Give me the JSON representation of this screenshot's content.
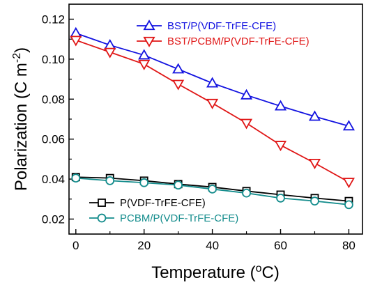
{
  "chart_data": {
    "type": "line",
    "xlabel": "Temperature (",
    "xlabel_sup": "o",
    "xlabel_tail": "C)",
    "ylabel": "Polarization (C m",
    "ylabel_sup": "-2",
    "ylabel_tail": ")",
    "xlim": [
      -2,
      84
    ],
    "ylim": [
      0.0125,
      0.1275
    ],
    "x_ticks": [
      0,
      20,
      40,
      60,
      80
    ],
    "x_tick_labels": [
      "0",
      "20",
      "40",
      "60",
      "80"
    ],
    "y_ticks": [
      0.02,
      0.04,
      0.06,
      0.08,
      0.1,
      0.12
    ],
    "y_tick_labels": [
      "0.02",
      "0.04",
      "0.06",
      "0.08",
      "0.10",
      "0.12"
    ],
    "grid": false,
    "series": [
      {
        "name": "BST/P(VDF-TrFE-CFE)",
        "color": "#1212e0",
        "marker": "triangle-up",
        "x": [
          0,
          10,
          20,
          30,
          40,
          50,
          60,
          70,
          80
        ],
        "y": [
          0.113,
          0.107,
          0.102,
          0.095,
          0.088,
          0.082,
          0.0765,
          0.0713,
          0.0665
        ]
      },
      {
        "name": "BST/PCBM/P(VDF-TrFE-CFE)",
        "color": "#e01616",
        "marker": "triangle-down",
        "x": [
          0,
          10,
          20,
          30,
          40,
          50,
          60,
          70,
          80
        ],
        "y": [
          0.1095,
          0.1035,
          0.0975,
          0.0875,
          0.078,
          0.068,
          0.057,
          0.048,
          0.0385
        ]
      },
      {
        "name": "P(VDF-TrFE-CFE)",
        "color": "#000000",
        "marker": "square",
        "x": [
          0,
          10,
          20,
          30,
          40,
          50,
          60,
          70,
          80
        ],
        "y": [
          0.041,
          0.0405,
          0.0392,
          0.0375,
          0.036,
          0.034,
          0.0322,
          0.0305,
          0.029
        ]
      },
      {
        "name": "PCBM/P(VDF-TrFE-CFE)",
        "color": "#138c8c",
        "marker": "circle",
        "x": [
          0,
          10,
          20,
          30,
          40,
          50,
          60,
          70,
          80
        ],
        "y": [
          0.0405,
          0.0392,
          0.0382,
          0.037,
          0.035,
          0.033,
          0.0305,
          0.029,
          0.0272
        ]
      }
    ]
  }
}
